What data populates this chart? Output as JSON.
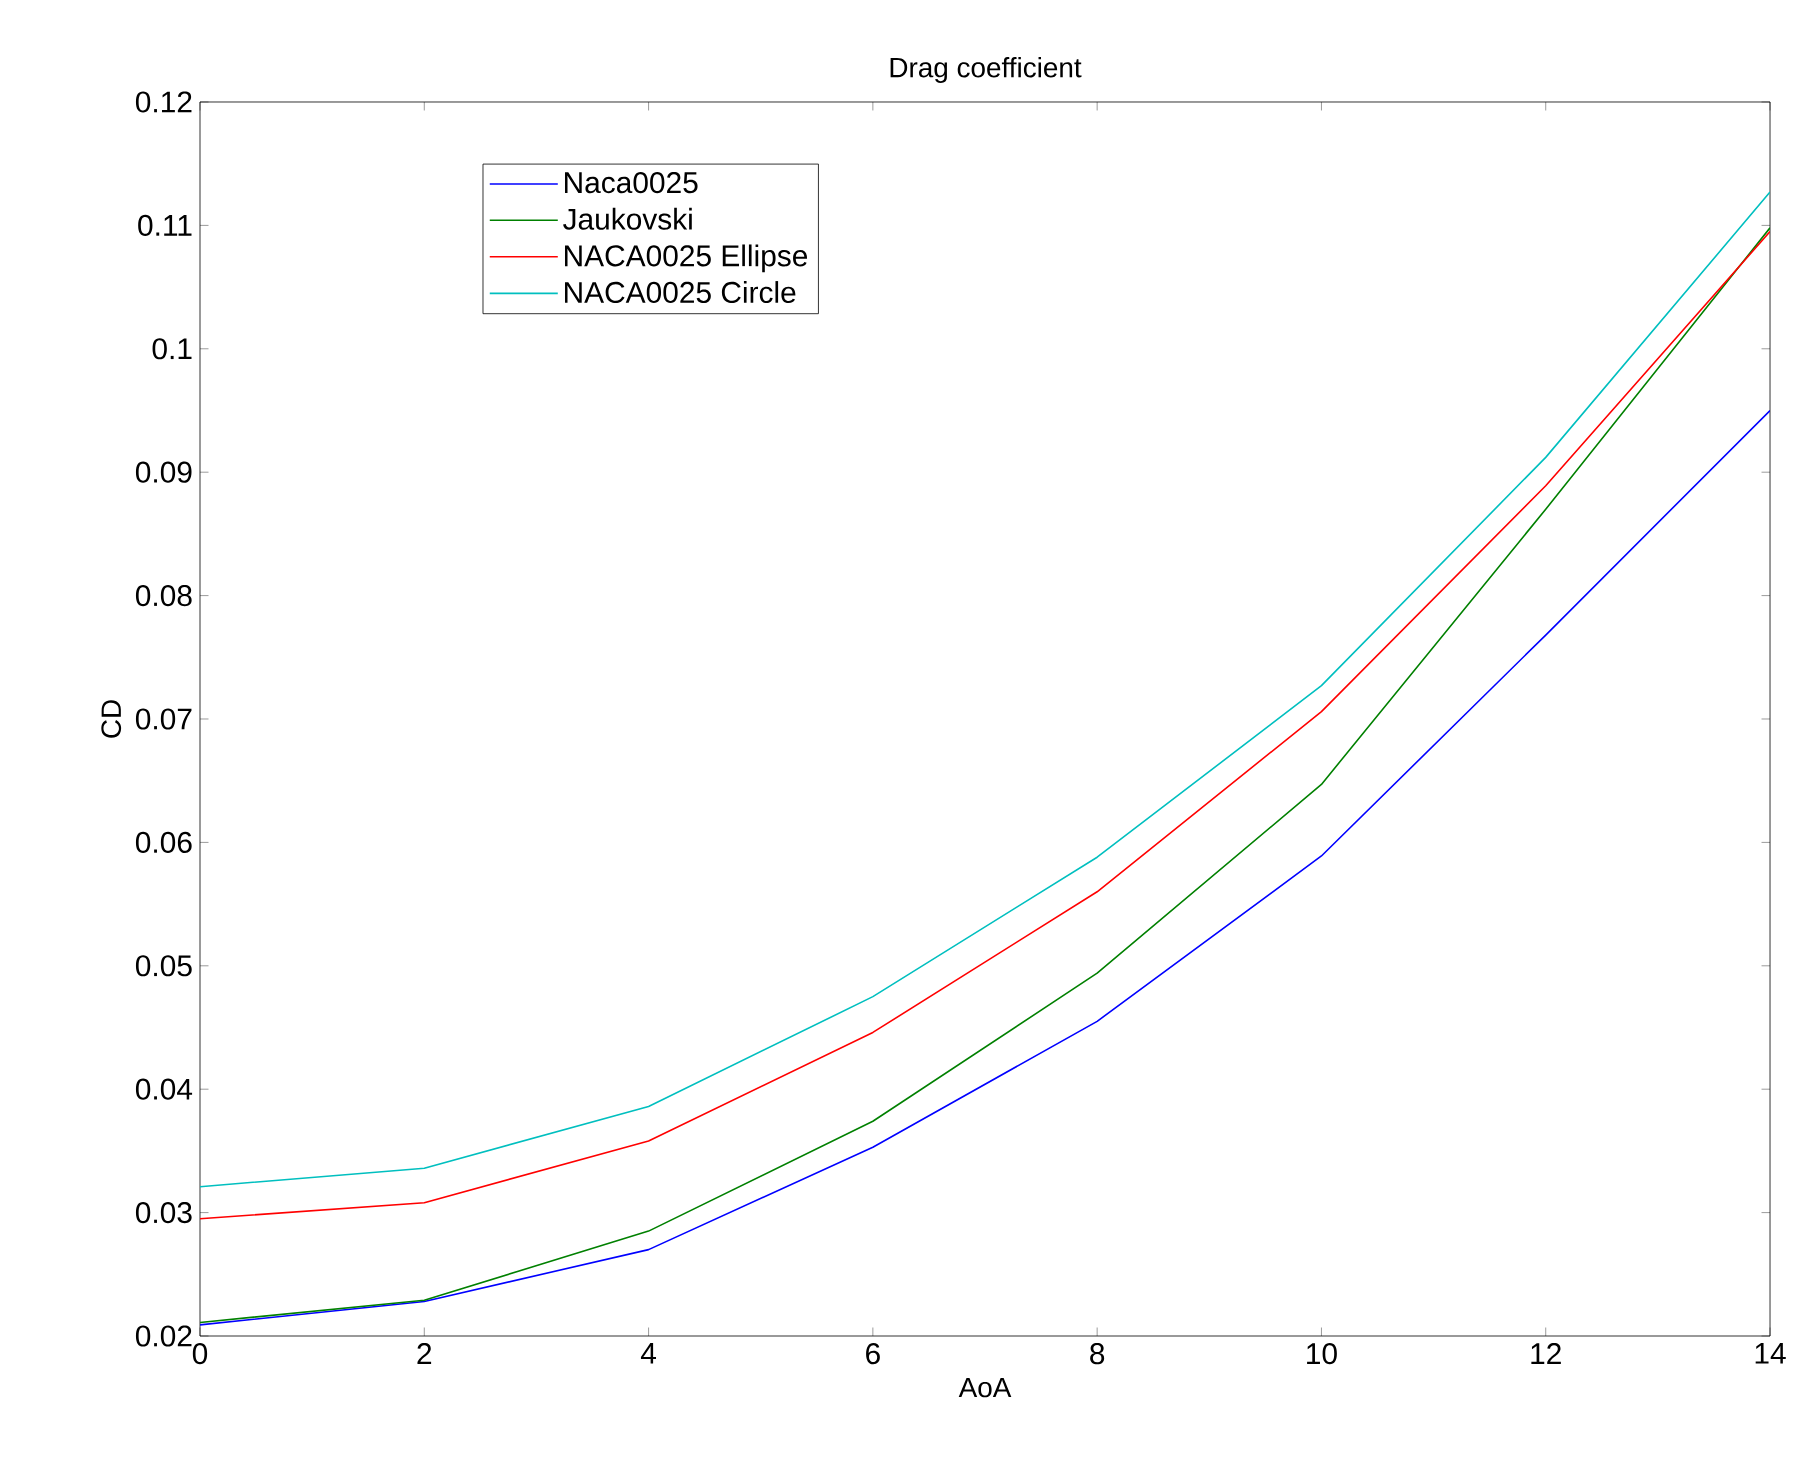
{
  "chart_data": {
    "type": "line",
    "title": "Drag coefficient",
    "xlabel": "AoA",
    "ylabel": "CD",
    "x": [
      0,
      2,
      4,
      6,
      8,
      10,
      12,
      14
    ],
    "series": [
      {
        "name": "Naca0025",
        "color": "#0000ff",
        "values": [
          0.0209,
          0.0228,
          0.027,
          0.0353,
          0.0455,
          0.0589,
          0.0768,
          0.095
        ]
      },
      {
        "name": "Jaukovski",
        "color": "#008000",
        "values": [
          0.0211,
          0.0229,
          0.0285,
          0.0374,
          0.0494,
          0.0647,
          0.087,
          0.1098
        ]
      },
      {
        "name": "NACA0025 Ellipse",
        "color": "#ff0000",
        "values": [
          0.0295,
          0.0308,
          0.0358,
          0.0446,
          0.056,
          0.0706,
          0.0889,
          0.1095
        ]
      },
      {
        "name": "NACA0025 Circle",
        "color": "#00bfbf",
        "values": [
          0.0321,
          0.0336,
          0.0386,
          0.0475,
          0.0588,
          0.0727,
          0.0912,
          0.1127
        ]
      }
    ],
    "xlim": [
      0,
      14
    ],
    "ylim": [
      0.02,
      0.12
    ],
    "xticks": [
      0,
      2,
      4,
      6,
      8,
      10,
      12,
      14
    ],
    "yticks": [
      0.02,
      0.03,
      0.04,
      0.05,
      0.06,
      0.07,
      0.08,
      0.09,
      {
        "value": 0.1,
        "label": "0.1"
      },
      0.11,
      0.12
    ],
    "legend": "top left",
    "grid": false,
    "marker": "none",
    "line_style": "solid"
  }
}
